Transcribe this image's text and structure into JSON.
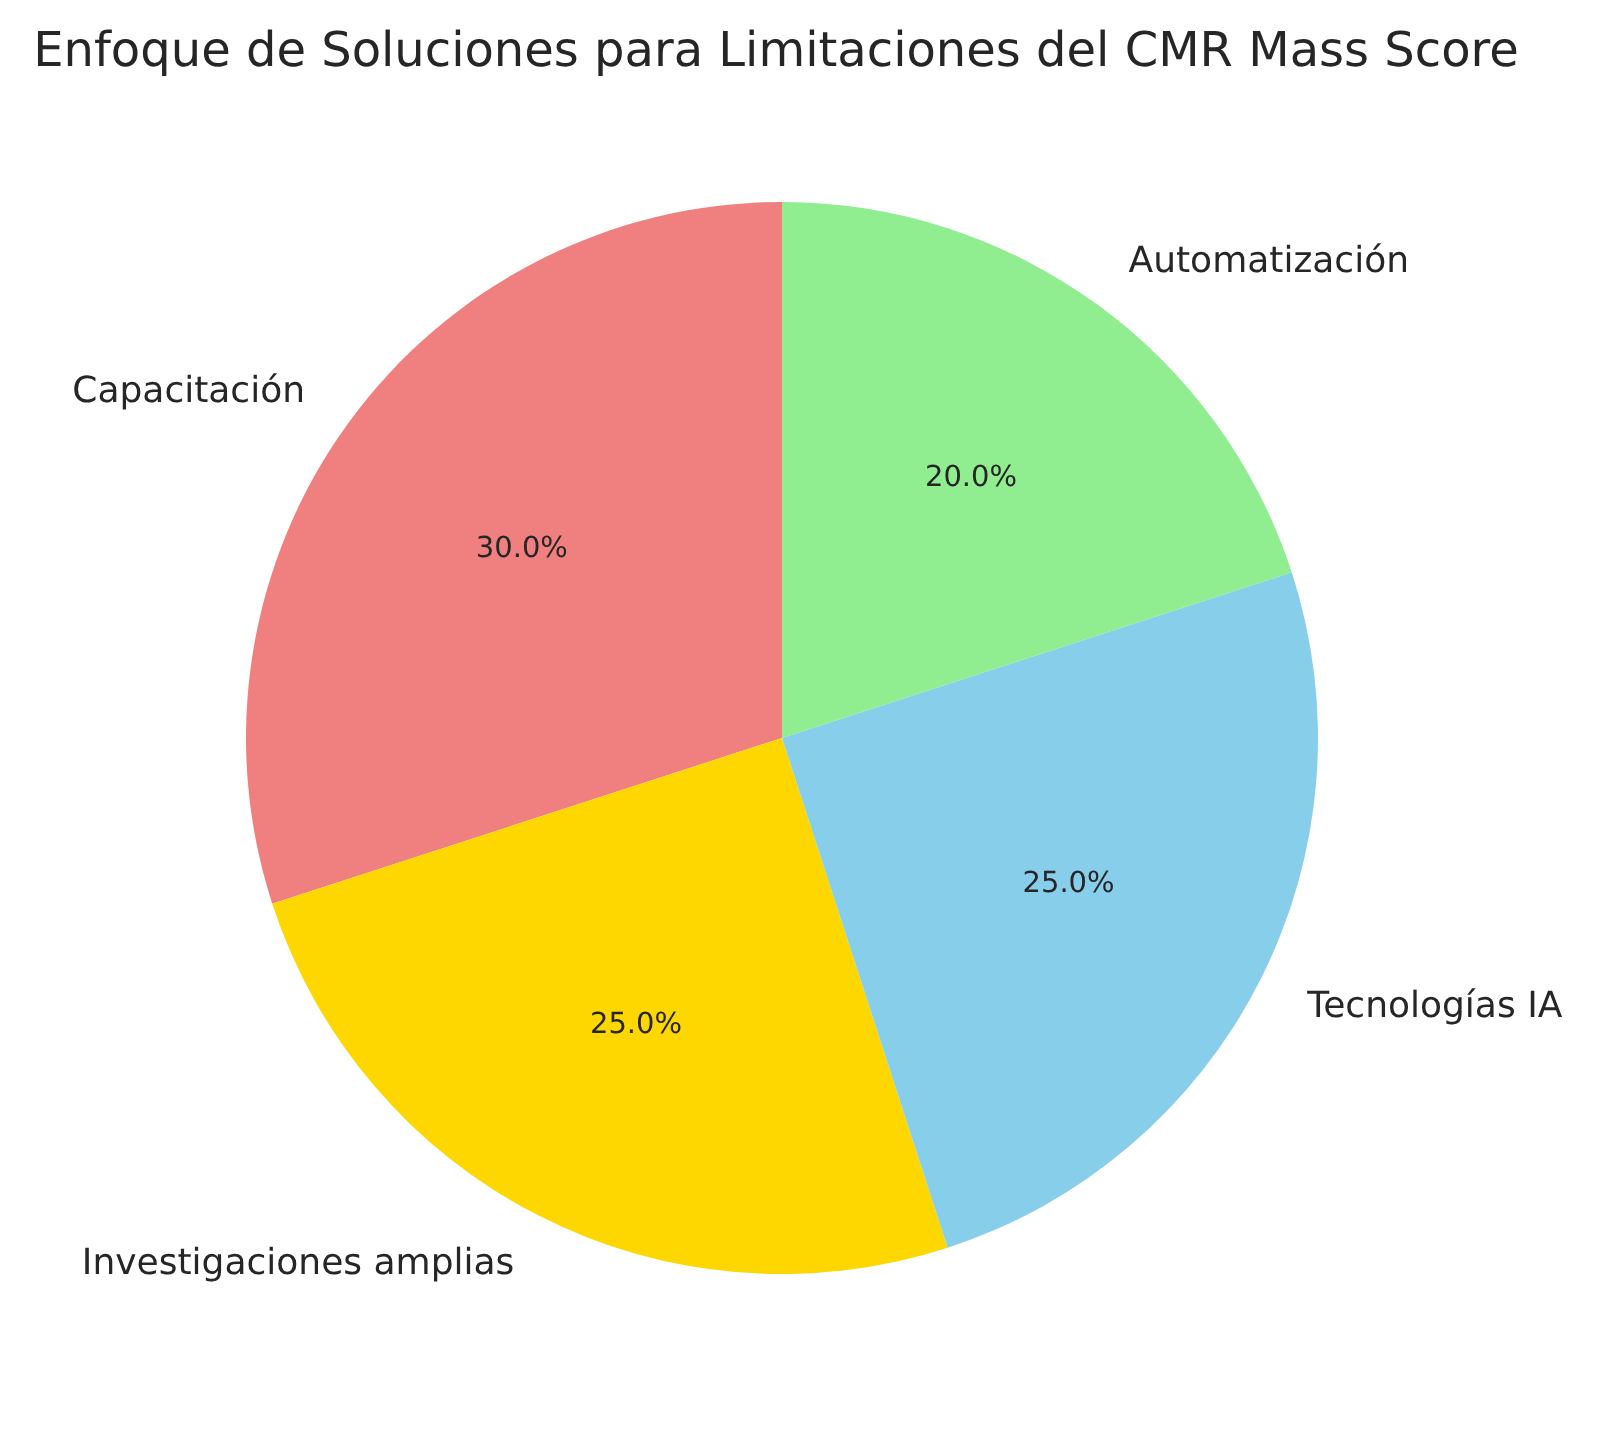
{
  "chart_data": {
    "type": "pie",
    "title": "Enfoque de Soluciones para Limitaciones del CMR Mass Score",
    "categories": [
      "Capacitación",
      "Investigaciones amplias",
      "Tecnologías IA",
      "Automatización"
    ],
    "values": [
      30,
      25,
      25,
      20
    ],
    "colors": [
      "#f08080",
      "#ffd700",
      "#87ceeb",
      "#90ee90"
    ],
    "value_labels": [
      "30.0%",
      "25.0%",
      "25.0%",
      "20.0%"
    ]
  }
}
